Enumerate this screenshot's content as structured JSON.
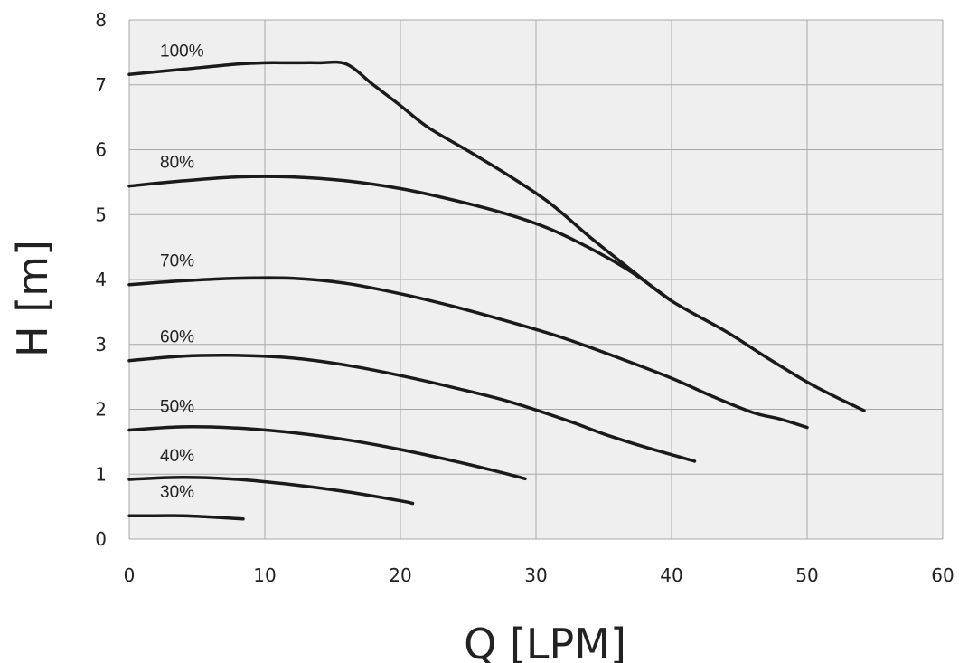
{
  "chart_data": {
    "type": "line",
    "xlabel": "Q  [LPM]",
    "ylabel": "H  [m]",
    "xlim": [
      0,
      60
    ],
    "ylim": [
      0,
      8
    ],
    "xticks": [
      "0",
      "10",
      "20",
      "30",
      "40",
      "50",
      "60"
    ],
    "yticks": [
      "0",
      "1",
      "2",
      "3",
      "4",
      "5",
      "6",
      "7",
      "8"
    ],
    "grid": true,
    "background": "#efefef",
    "line_color": "#1a1a1a",
    "series": [
      {
        "name": "100%",
        "x": [
          0,
          4,
          8,
          10,
          12,
          14,
          16,
          18,
          20,
          22,
          25,
          28,
          31,
          34,
          37,
          40,
          44,
          47,
          50,
          52,
          54.2
        ],
        "y": [
          7.16,
          7.24,
          7.32,
          7.34,
          7.34,
          7.34,
          7.32,
          7.0,
          6.68,
          6.35,
          5.98,
          5.6,
          5.18,
          4.65,
          4.15,
          3.67,
          3.2,
          2.8,
          2.42,
          2.2,
          1.98
        ]
      },
      {
        "name": "80%",
        "x": [
          0,
          4,
          8,
          12,
          16,
          20,
          24,
          28,
          31,
          34,
          37,
          40
        ],
        "y": [
          5.44,
          5.52,
          5.58,
          5.58,
          5.52,
          5.4,
          5.22,
          5.0,
          4.78,
          4.48,
          4.12,
          3.67
        ]
      },
      {
        "name": "70%",
        "x": [
          0,
          4,
          8,
          12,
          16,
          20,
          24,
          28,
          32,
          36,
          40,
          43,
          46,
          48,
          50
        ],
        "y": [
          3.92,
          3.98,
          4.02,
          4.02,
          3.94,
          3.78,
          3.58,
          3.35,
          3.1,
          2.8,
          2.48,
          2.2,
          1.95,
          1.85,
          1.72
        ]
      },
      {
        "name": "60%",
        "x": [
          0,
          4,
          8,
          12,
          16,
          20,
          24,
          28,
          32,
          35,
          38,
          41.7
        ],
        "y": [
          2.75,
          2.82,
          2.83,
          2.79,
          2.68,
          2.52,
          2.33,
          2.12,
          1.85,
          1.62,
          1.42,
          1.2
        ]
      },
      {
        "name": "50%",
        "x": [
          0,
          4,
          8,
          12,
          16,
          20,
          24,
          27,
          29.2
        ],
        "y": [
          1.68,
          1.73,
          1.71,
          1.64,
          1.53,
          1.38,
          1.2,
          1.05,
          0.93
        ]
      },
      {
        "name": "40%",
        "x": [
          0,
          4,
          8,
          12,
          16,
          20,
          20.9
        ],
        "y": [
          0.92,
          0.95,
          0.92,
          0.84,
          0.73,
          0.59,
          0.55
        ]
      },
      {
        "name": "30%",
        "x": [
          0,
          2,
          4,
          6,
          8.4
        ],
        "y": [
          0.36,
          0.36,
          0.36,
          0.34,
          0.31
        ]
      }
    ]
  }
}
